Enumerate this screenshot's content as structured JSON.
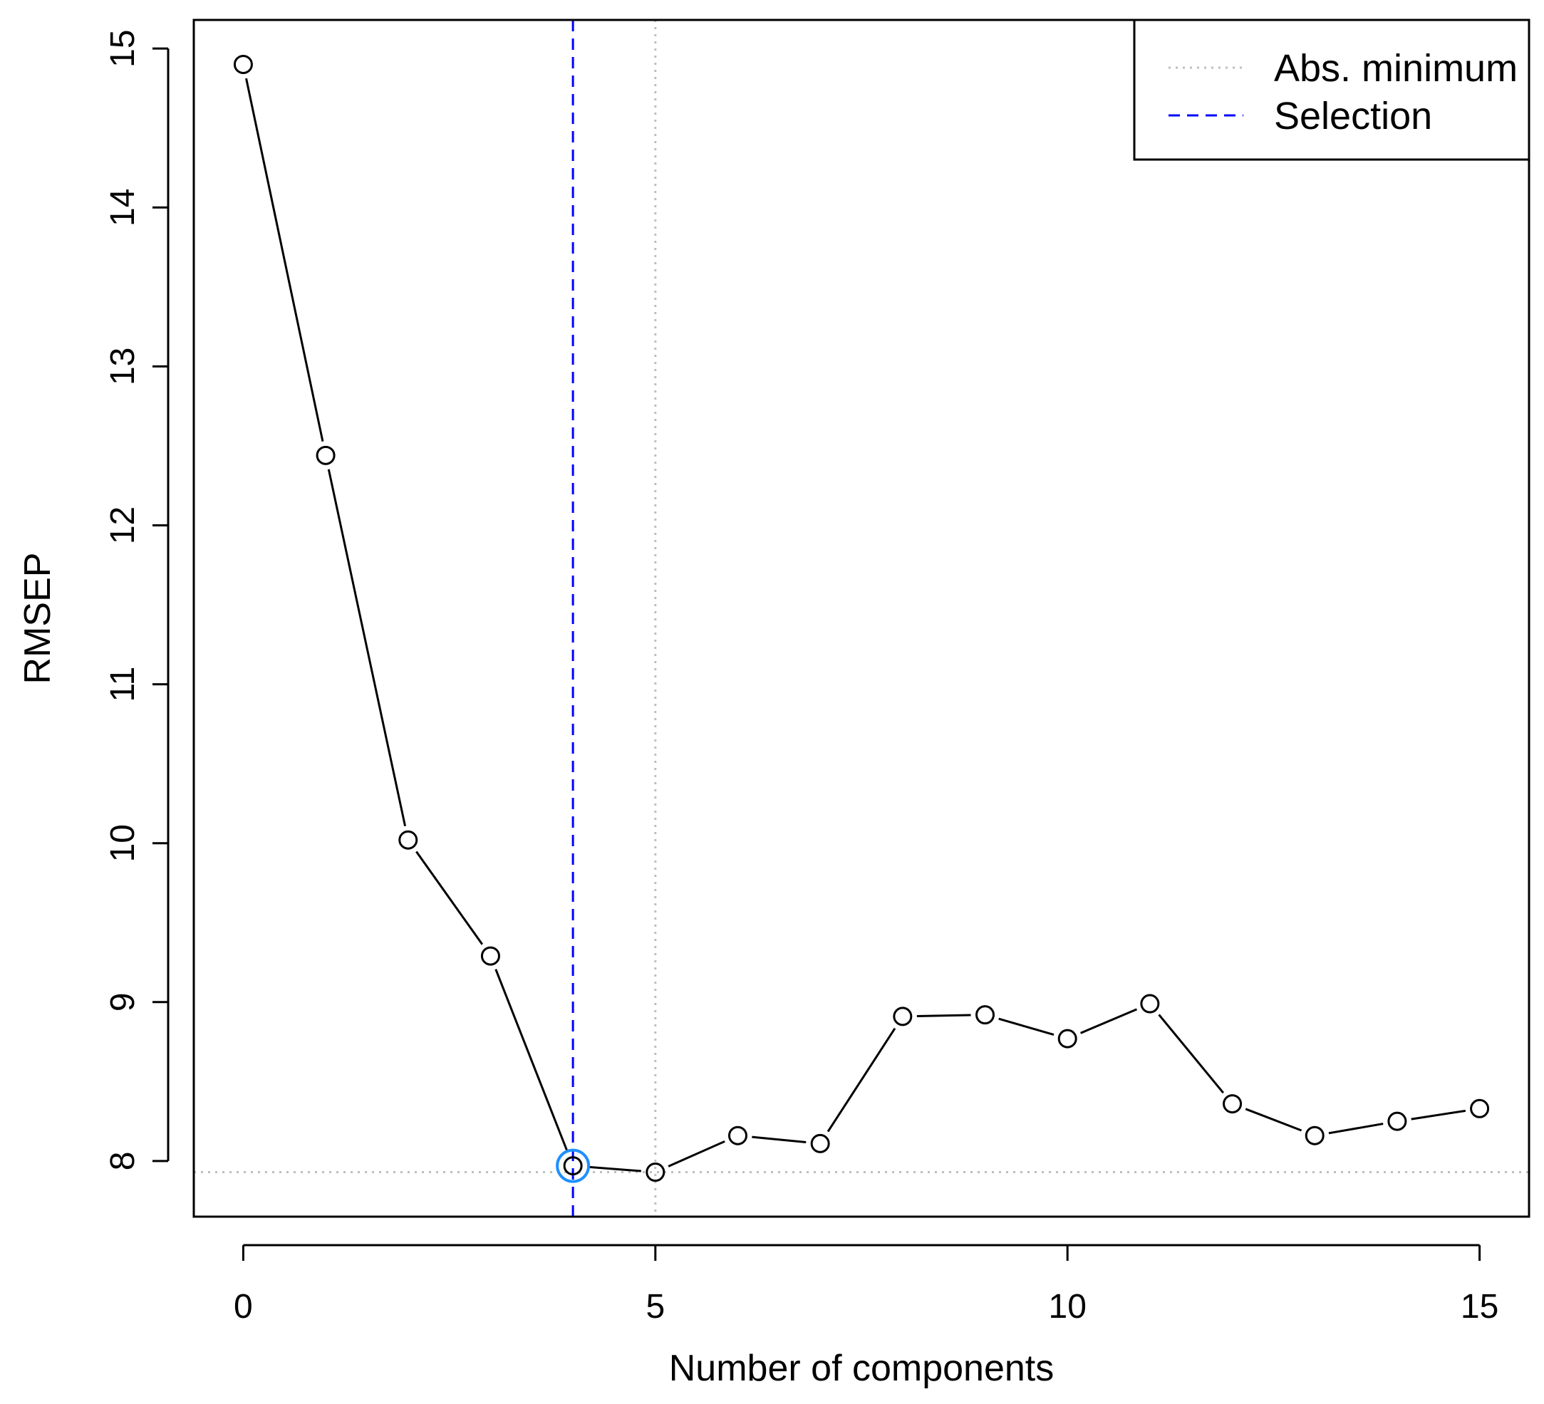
{
  "chart_data": {
    "type": "line",
    "title": "",
    "xlabel": "Number of components",
    "ylabel": "RMSEP",
    "xlim": [
      -0.6,
      15.6
    ],
    "ylim": [
      7.65,
      15.18
    ],
    "x_ticks": [
      "0",
      "5",
      "10",
      "15"
    ],
    "y_ticks": [
      "8",
      "9",
      "10",
      "11",
      "12",
      "13",
      "14",
      "15"
    ],
    "grid": false,
    "series": [
      {
        "x": [
          0,
          1,
          2,
          3,
          4,
          5,
          6,
          7,
          8,
          9,
          10,
          11,
          12,
          13,
          14,
          15
        ],
        "y": [
          14.9,
          12.44,
          10.02,
          9.29,
          7.97,
          7.93,
          8.16,
          8.11,
          8.91,
          8.92,
          8.77,
          8.99,
          8.36,
          8.16,
          8.25,
          8.33
        ],
        "color": "#000000",
        "marker": "open-circle"
      }
    ],
    "reference_lines": {
      "abs_minimum": {
        "x": 5,
        "y": 7.93,
        "color": "#bebebe",
        "style": "dotted"
      },
      "selection": {
        "x": 4,
        "color": "#0000ff",
        "style": "dashed"
      }
    },
    "selected_point": {
      "x": 4,
      "y": 7.97,
      "color": "#1e90ff"
    },
    "legend": {
      "position": "top-right",
      "entries": [
        {
          "label": "Abs. minimum",
          "color": "#bebebe",
          "style": "dotted"
        },
        {
          "label": "Selection",
          "color": "#0000ff",
          "style": "dashed"
        }
      ]
    }
  }
}
